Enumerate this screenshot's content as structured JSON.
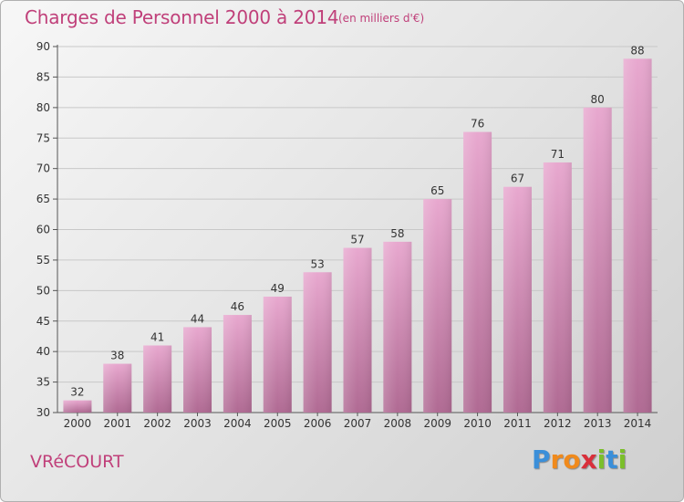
{
  "title": "Charges de Personnel 2000 à 2014",
  "subtitle": "(en milliers d'€)",
  "commune": "VRéCOURT",
  "logo": {
    "letters": [
      "P",
      "r",
      "o",
      "x",
      "i",
      "t",
      "i"
    ],
    "colors": [
      "#3b8fd9",
      "#f08a1c",
      "#f08a1c",
      "#d92f3a",
      "#7bbf2a",
      "#3b8fd9",
      "#7bbf2a"
    ]
  },
  "colors": {
    "bar_top": "#e8a8cf",
    "bar_bottom": "#b06a93",
    "accent": "#c0407a"
  },
  "chart_data": {
    "type": "bar",
    "categories": [
      "2000",
      "2001",
      "2002",
      "2003",
      "2004",
      "2005",
      "2006",
      "2007",
      "2008",
      "2009",
      "2010",
      "2011",
      "2012",
      "2013",
      "2014"
    ],
    "values": [
      32,
      38,
      41,
      44,
      46,
      49,
      53,
      57,
      58,
      65,
      76,
      67,
      71,
      80,
      88
    ],
    "title": "Charges de Personnel 2000 à 2014",
    "subtitle": "(en milliers d'€)",
    "ylim": [
      30,
      90
    ],
    "yticks": [
      30,
      35,
      40,
      45,
      50,
      55,
      60,
      65,
      70,
      75,
      80,
      85,
      90
    ],
    "grid": true,
    "data_labels": true
  }
}
